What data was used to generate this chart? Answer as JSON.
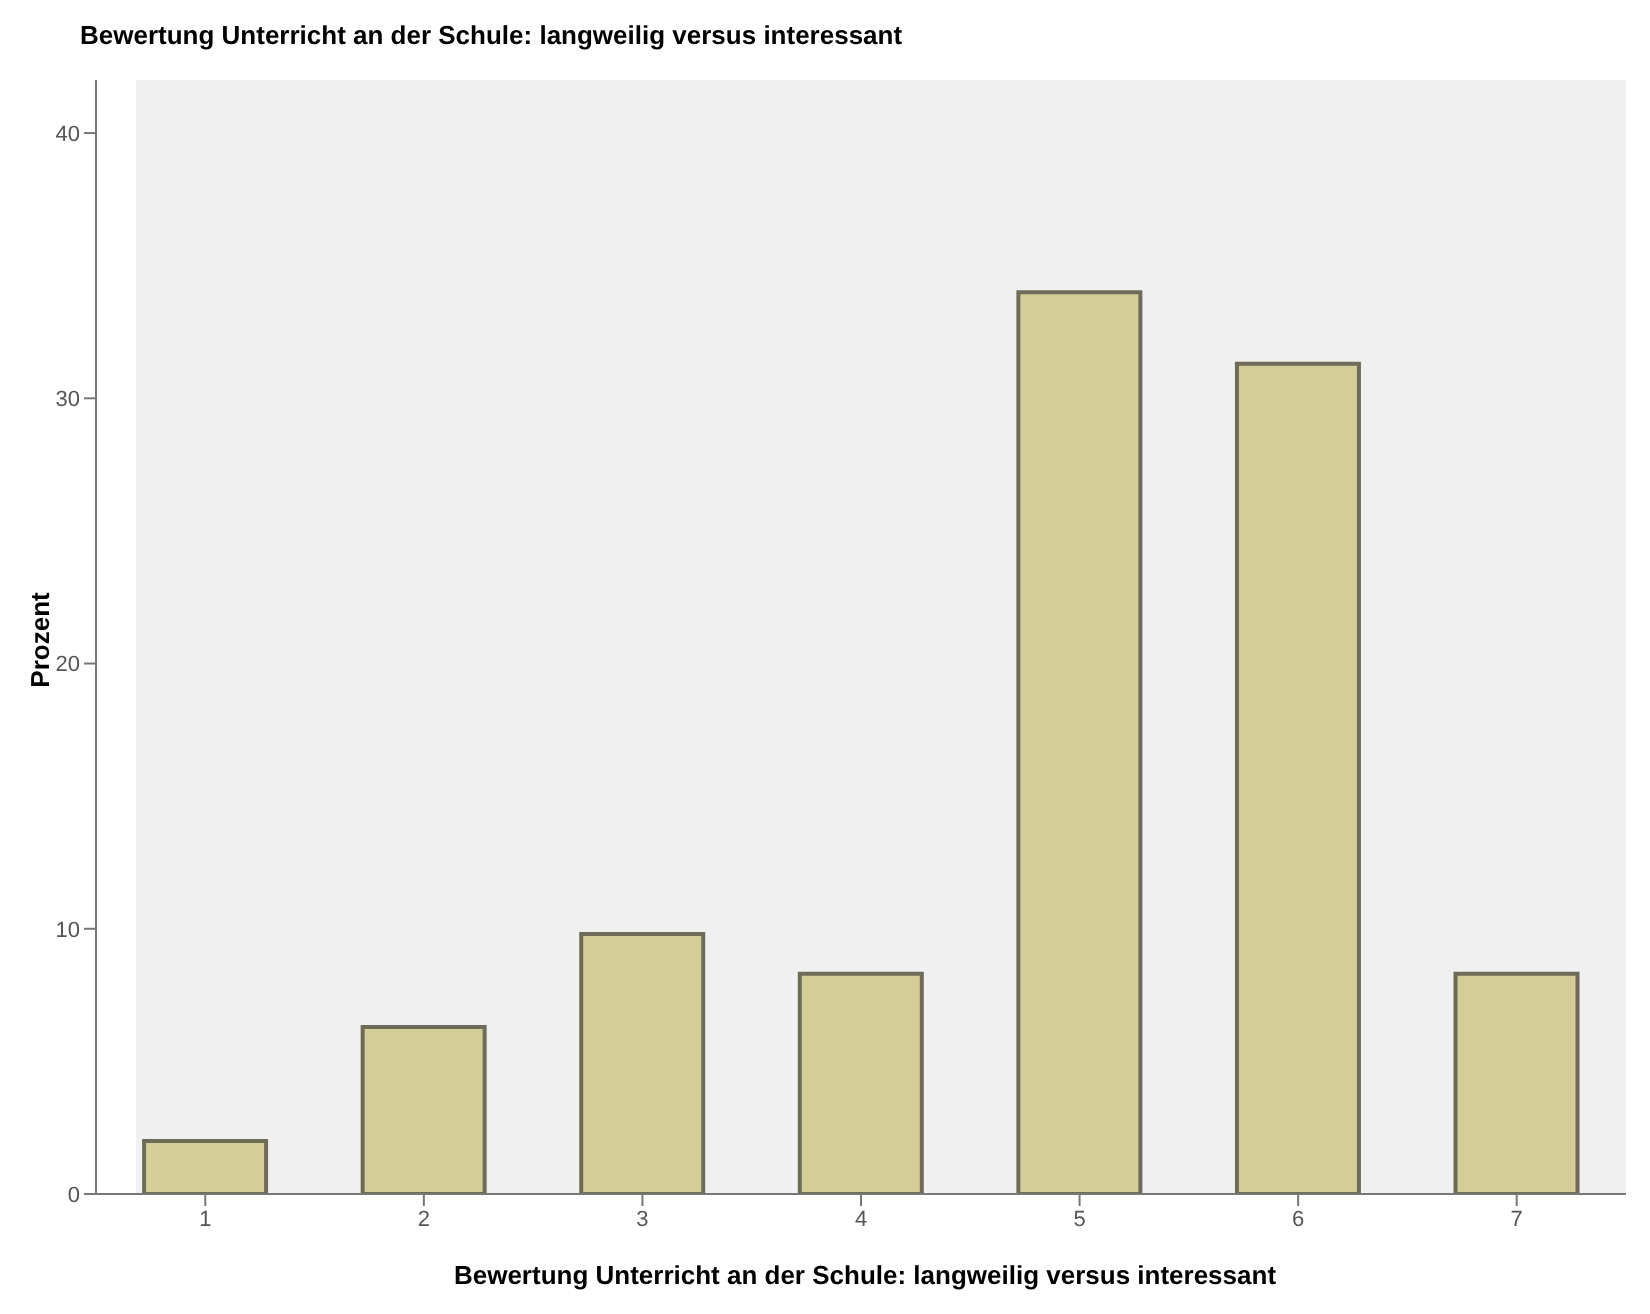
{
  "chart_data": {
    "type": "bar",
    "title": "Bewertung Unterricht an der Schule: langweilig versus interessant",
    "xlabel": "Bewertung Unterricht an der Schule: langweilig versus interessant",
    "ylabel": "Prozent",
    "categories": [
      "1",
      "2",
      "3",
      "4",
      "5",
      "6",
      "7"
    ],
    "values": [
      2.0,
      6.3,
      9.8,
      8.3,
      34.0,
      31.3,
      8.3
    ],
    "color": "#d3ce98",
    "ylim": [
      0,
      42
    ],
    "yticks": [
      0,
      10,
      20,
      30,
      40
    ],
    "grid": false,
    "legend": false
  }
}
